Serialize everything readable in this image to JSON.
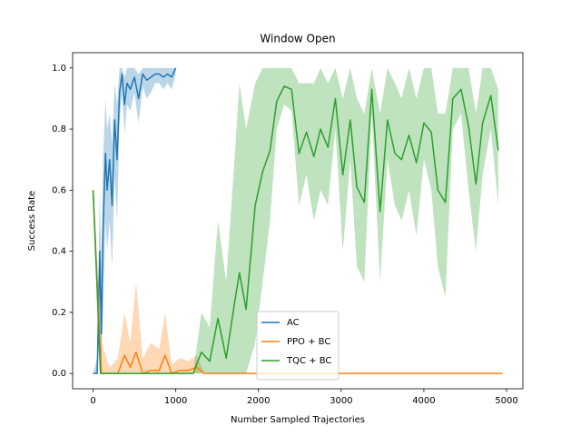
{
  "chart_data": {
    "type": "line",
    "title": "Window Open",
    "x_label": "Number Sampled Trajectories",
    "y_label": "Success Rate",
    "xlim": [
      -247.5,
      5197.5
    ],
    "ylim": [
      -0.05,
      1.05
    ],
    "xticks": [
      0,
      1000,
      2000,
      3000,
      4000,
      5000
    ],
    "yticks": [
      {
        "value": 0,
        "label": "0.0"
      },
      0.2,
      0.4,
      0.6,
      0.8,
      {
        "value": 1,
        "label": "1.0"
      }
    ],
    "legend": "lower center",
    "band_opacity": 0.3,
    "series": [
      {
        "name": "AC",
        "color": "#1f77b4",
        "x": [
          0,
          50,
          80,
          100,
          120,
          150,
          170,
          200,
          230,
          260,
          290,
          320,
          350,
          380,
          410,
          450,
          500,
          550,
          600,
          650,
          700,
          750,
          800,
          850,
          900,
          950,
          1000
        ],
        "values": [
          0,
          0,
          0.4,
          0.13,
          0.47,
          0.72,
          0.6,
          0.7,
          0.55,
          0.83,
          0.7,
          0.92,
          0.98,
          0.88,
          0.95,
          0.93,
          0.97,
          0.9,
          0.98,
          0.96,
          0.97,
          0.98,
          0.98,
          0.97,
          0.98,
          0.97,
          1.0
        ],
        "lower": [
          0,
          0,
          0.1,
          0,
          0.2,
          0.5,
          0.4,
          0.5,
          0.35,
          0.65,
          0.5,
          0.82,
          0.92,
          0.78,
          0.88,
          0.86,
          0.92,
          0.82,
          0.94,
          0.9,
          0.92,
          0.95,
          0.95,
          0.93,
          0.95,
          0.93,
          0.98
        ],
        "upper": [
          0,
          0.05,
          0.6,
          0.35,
          0.7,
          0.9,
          0.8,
          0.85,
          0.75,
          0.95,
          0.88,
          1,
          1,
          0.97,
          1,
          1,
          1,
          0.98,
          1,
          1,
          1,
          1,
          1,
          1,
          1,
          1,
          1
        ]
      },
      {
        "name": "PPO + BC",
        "color": "#ff7f0e",
        "x": [
          0,
          100,
          200,
          300,
          380,
          450,
          520,
          600,
          700,
          800,
          870,
          950,
          1050,
          1150,
          1250,
          1350,
          2000,
          3000,
          4000,
          4950
        ],
        "values": [
          0.6,
          0,
          0,
          0,
          0.06,
          0.02,
          0.07,
          0,
          0.01,
          0.01,
          0.06,
          0,
          0.01,
          0.01,
          0.02,
          0,
          0,
          0,
          0,
          0
        ],
        "lower": [
          0.6,
          0,
          0,
          0,
          0,
          0,
          0,
          0,
          0,
          0,
          0,
          0,
          0,
          0,
          0,
          0,
          0,
          0,
          0,
          0
        ],
        "upper": [
          0.6,
          0.1,
          0.02,
          0.05,
          0.2,
          0.1,
          0.3,
          0.05,
          0.1,
          0.08,
          0.2,
          0.03,
          0.05,
          0.04,
          0.06,
          0,
          0,
          0,
          0,
          0
        ]
      },
      {
        "name": "TQC + BC",
        "color": "#2ca02c",
        "x": [
          0,
          90,
          1210,
          1310,
          1410,
          1510,
          1610,
          1710,
          1770,
          1850,
          1960,
          2050,
          2140,
          2220,
          2310,
          2400,
          2490,
          2580,
          2670,
          2750,
          2840,
          2930,
          3020,
          3110,
          3190,
          3280,
          3370,
          3470,
          3560,
          3650,
          3730,
          3820,
          3910,
          4000,
          4090,
          4170,
          4260,
          4350,
          4450,
          4540,
          4630,
          4710,
          4810,
          4900
        ],
        "values": [
          0.6,
          0,
          0,
          0.07,
          0.04,
          0.18,
          0.05,
          0.23,
          0.33,
          0.21,
          0.55,
          0.66,
          0.73,
          0.89,
          0.94,
          0.93,
          0.72,
          0.79,
          0.71,
          0.8,
          0.74,
          0.9,
          0.65,
          0.83,
          0.61,
          0.56,
          0.93,
          0.53,
          0.83,
          0.72,
          0.7,
          0.78,
          0.69,
          0.82,
          0.79,
          0.6,
          0.56,
          0.9,
          0.93,
          0.81,
          0.62,
          0.82,
          0.91,
          0.73
        ],
        "lower": [
          0.6,
          0,
          0,
          0,
          0,
          0,
          0,
          0,
          0,
          0,
          0.1,
          0.3,
          0.5,
          0.8,
          0.88,
          0.86,
          0.55,
          0.65,
          0.5,
          0.6,
          0.55,
          0.8,
          0.4,
          0.7,
          0.35,
          0.3,
          0.85,
          0.3,
          0.7,
          0.55,
          0.5,
          0.6,
          0.45,
          0.7,
          0.6,
          0.35,
          0.25,
          0.8,
          0.85,
          0.6,
          0.4,
          0.65,
          0.8,
          0.55
        ],
        "upper": [
          0.6,
          0,
          0,
          0.2,
          0.15,
          0.5,
          0.3,
          0.7,
          0.95,
          0.8,
          0.95,
          1,
          1,
          1,
          1,
          1,
          0.95,
          0.95,
          0.95,
          1,
          0.95,
          1,
          0.9,
          1,
          0.9,
          0.85,
          1,
          0.85,
          1,
          0.95,
          0.9,
          1,
          0.9,
          1,
          1,
          0.85,
          0.85,
          1,
          1,
          1,
          0.85,
          1,
          1,
          0.93
        ]
      }
    ]
  }
}
